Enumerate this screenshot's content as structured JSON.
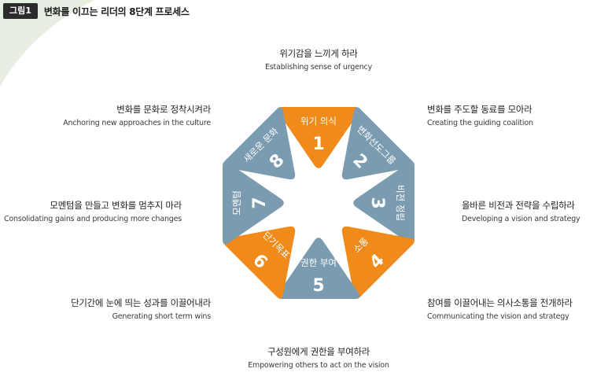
{
  "figure": {
    "badge": "그림1",
    "title": "변화를 이끄는 리더의 8단계 프로세스"
  },
  "colors": {
    "orange": "#ef8a1b",
    "steel_blue": "#7b9cb0",
    "badge_bg": "#2b2b2b",
    "deco_green": "#e6efe2"
  },
  "steps": [
    {
      "number": "1",
      "label": "위기 의식",
      "color": "orange",
      "description_ko": "위기감을 느끼게 하라",
      "description_en": "Establishing sense of urgency"
    },
    {
      "number": "2",
      "label": "변화선도그룹",
      "color": "steel_blue",
      "description_ko": "변화를 주도할 동료를 모아라",
      "description_en": "Creating the guiding coalition"
    },
    {
      "number": "3",
      "label": "비전 정립",
      "color": "steel_blue",
      "description_ko": "올바른 비전과 전략을 수립하라",
      "description_en": "Developing a vision and strategy"
    },
    {
      "number": "4",
      "label": "소통",
      "color": "orange",
      "description_ko": "참여를 이끌어내는 의사소통을 전개하라",
      "description_en": "Communicating the vision and strategy"
    },
    {
      "number": "5",
      "label": "권한 부여",
      "color": "steel_blue",
      "description_ko": "구성원에게 권한을 부여하라",
      "description_en": "Empowering others to act on the vision"
    },
    {
      "number": "6",
      "label": "단기목표",
      "color": "orange",
      "description_ko": "단기간에 눈에 띄는 성과를 이끌어내라",
      "description_en": "Generating short term wins"
    },
    {
      "number": "7",
      "label": "모멘텀",
      "color": "steel_blue",
      "description_ko": "모멘텀을 만들고 변화를 멈추지 마라",
      "description_en": "Consolidating gains and producing more changes"
    },
    {
      "number": "8",
      "label": "새로운 문화",
      "color": "steel_blue",
      "description_ko": "변화를 문화로 정착시켜라",
      "description_en": "Anchoring new approaches in the culture"
    }
  ]
}
